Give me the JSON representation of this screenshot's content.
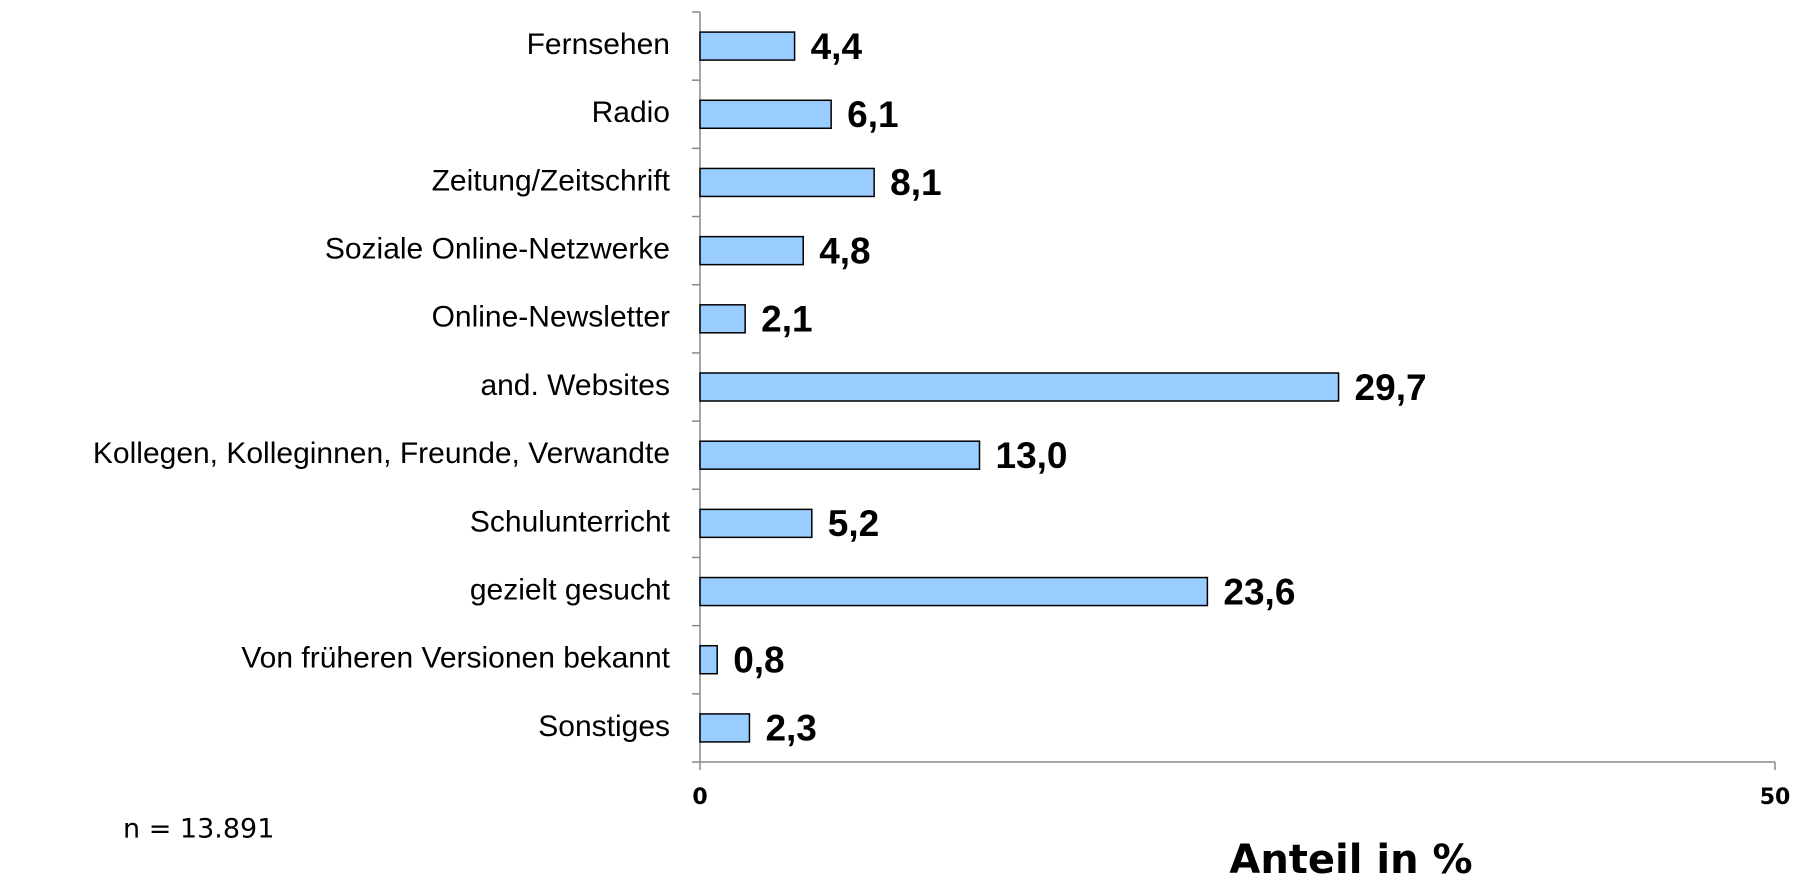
{
  "chart_data": {
    "type": "barh",
    "categories": [
      "Fernsehen",
      "Radio",
      "Zeitung/Zeitschrift",
      "Soziale Online-Netzwerke",
      "Online-Newsletter",
      "and. Websites",
      "Kollegen, Kolleginnen, Freunde, Verwandte",
      "Schulunterricht",
      "gezielt gesucht",
      "Von früheren Versionen bekannt",
      "Sonstiges"
    ],
    "values": [
      4.4,
      6.1,
      8.1,
      4.8,
      2.1,
      29.7,
      13.0,
      5.2,
      23.6,
      0.8,
      2.3
    ],
    "value_labels": [
      "4,4",
      "6,1",
      "8,1",
      "4,8",
      "2,1",
      "29,7",
      "13,0",
      "5,2",
      "23,6",
      "0,8",
      "2,3"
    ],
    "color": "#99ccff",
    "xlim": [
      0,
      50
    ],
    "xticks": [
      0,
      50
    ],
    "xlabel": "Anteil in %",
    "annotation": "n = 13.891"
  }
}
